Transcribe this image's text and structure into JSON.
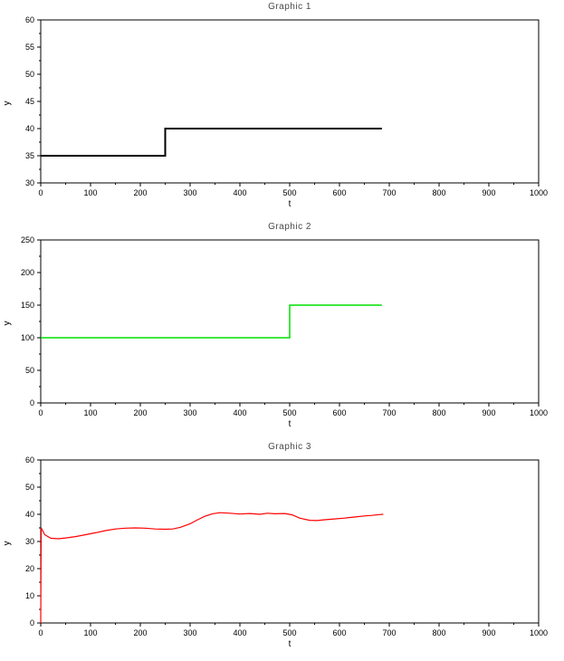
{
  "page": {
    "background": "#ffffff"
  },
  "chart_data": [
    {
      "type": "line",
      "title": "Graphic 1",
      "xlabel": "t",
      "ylabel": "y",
      "xlim": [
        0,
        1000
      ],
      "ylim": [
        30,
        60
      ],
      "xticks": [
        0,
        100,
        200,
        300,
        400,
        500,
        600,
        700,
        800,
        900,
        1000
      ],
      "yticks": [
        30,
        35,
        40,
        45,
        50,
        55,
        60
      ],
      "grid": false,
      "series": [
        {
          "name": "black-step-signal",
          "color": "#000000",
          "width": 2,
          "x": [
            0,
            250,
            250,
            685
          ],
          "y": [
            35,
            35,
            40,
            40
          ]
        }
      ]
    },
    {
      "type": "line",
      "title": "Graphic 2",
      "xlabel": "t",
      "ylabel": "y",
      "xlim": [
        0,
        1000
      ],
      "ylim": [
        0,
        250
      ],
      "xticks": [
        0,
        100,
        200,
        300,
        400,
        500,
        600,
        700,
        800,
        900,
        1000
      ],
      "yticks": [
        0,
        50,
        100,
        150,
        200,
        250
      ],
      "grid": false,
      "series": [
        {
          "name": "green-step-signal",
          "color": "#00e000",
          "width": 1.5,
          "x": [
            0,
            500,
            500,
            685
          ],
          "y": [
            100,
            100,
            150,
            150
          ]
        }
      ]
    },
    {
      "type": "line",
      "title": "Graphic 3",
      "xlabel": "t",
      "ylabel": "y",
      "xlim": [
        0,
        1000
      ],
      "ylim": [
        0,
        60
      ],
      "xticks": [
        0,
        100,
        200,
        300,
        400,
        500,
        600,
        700,
        800,
        900,
        1000
      ],
      "yticks": [
        0,
        10,
        20,
        30,
        40,
        50,
        60
      ],
      "grid": false,
      "series": [
        {
          "name": "red-response-signal",
          "color": "#ff0000",
          "width": 1.2,
          "x": [
            0,
            1,
            8,
            20,
            35,
            50,
            70,
            90,
            110,
            130,
            150,
            170,
            190,
            210,
            230,
            250,
            265,
            280,
            300,
            315,
            330,
            345,
            360,
            380,
            400,
            420,
            440,
            455,
            470,
            490,
            505,
            520,
            540,
            555,
            570,
            590,
            610,
            630,
            650,
            665,
            680,
            688
          ],
          "y": [
            0,
            35,
            32.5,
            31.2,
            31.0,
            31.3,
            31.8,
            32.5,
            33.2,
            34.0,
            34.6,
            34.9,
            35.0,
            34.9,
            34.6,
            34.5,
            34.6,
            35.2,
            36.5,
            38.0,
            39.3,
            40.2,
            40.6,
            40.4,
            40.1,
            40.3,
            40.0,
            40.4,
            40.2,
            40.3,
            39.8,
            38.6,
            37.8,
            37.7,
            38.0,
            38.3,
            38.6,
            39.0,
            39.4,
            39.6,
            39.9,
            40.0
          ]
        }
      ]
    }
  ]
}
